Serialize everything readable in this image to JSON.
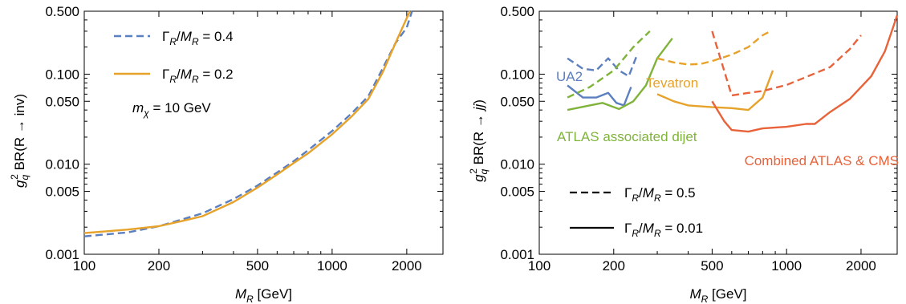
{
  "colors": {
    "blue": "#5b7fbf",
    "orange": "#e6a22a",
    "green": "#7fb33a",
    "red": "#e8623a",
    "black": "#000000"
  },
  "chart_data": [
    {
      "type": "line",
      "xscale": "log",
      "yscale": "log",
      "xlim": [
        100,
        2800
      ],
      "ylim": [
        0.001,
        0.5
      ],
      "xticks": [
        "100",
        "200",
        "500",
        "1000",
        "2000"
      ],
      "yticks": [
        "0.001",
        "0.005",
        "0.010",
        "0.050",
        "0.100",
        "0.500"
      ],
      "ylabel_parts": {
        "main": "g",
        "sub": "q",
        "sup": "2",
        "rest": " BR(R → inv)"
      },
      "xlabel_parts": {
        "main": "M",
        "sub": "R",
        "rest": " [GeV]"
      },
      "annotation": {
        "main": "m",
        "sub": "χ",
        "rest": " = 10 GeV"
      },
      "series": [
        {
          "name": "Γ_R/M_R = 0.4",
          "label_parts": {
            "a": "Γ",
            "asub": "R",
            "mid": "/M",
            "bsub": "R",
            "rest": " = 0.4"
          },
          "color": "blue",
          "dash": "dashed",
          "x": [
            100,
            150,
            200,
            250,
            300,
            400,
            500,
            600,
            700,
            800,
            1000,
            1200,
            1400,
            1600,
            1800,
            2000,
            2100
          ],
          "y": [
            0.00158,
            0.00175,
            0.00205,
            0.00245,
            0.00285,
            0.0041,
            0.0058,
            0.0081,
            0.0108,
            0.0143,
            0.0234,
            0.0368,
            0.057,
            0.116,
            0.22,
            0.33,
            0.5
          ]
        },
        {
          "name": "Γ_R/M_R = 0.2",
          "label_parts": {
            "a": "Γ",
            "asub": "R",
            "mid": "/M",
            "bsub": "R",
            "rest": " = 0.2"
          },
          "color": "orange",
          "dash": "solid",
          "x": [
            100,
            150,
            200,
            250,
            300,
            400,
            500,
            600,
            700,
            800,
            1000,
            1200,
            1400,
            1600,
            1800,
            1950,
            2060
          ],
          "y": [
            0.00172,
            0.00188,
            0.00205,
            0.00235,
            0.00265,
            0.0038,
            0.0055,
            0.0077,
            0.0103,
            0.0132,
            0.0215,
            0.034,
            0.053,
            0.105,
            0.22,
            0.36,
            0.5
          ]
        }
      ]
    },
    {
      "type": "line",
      "xscale": "log",
      "yscale": "log",
      "xlim": [
        100,
        2800
      ],
      "ylim": [
        0.001,
        0.5
      ],
      "xticks": [
        "100",
        "200",
        "500",
        "1000",
        "2000"
      ],
      "yticks": [
        "0.001",
        "0.005",
        "0.010",
        "0.050",
        "0.100",
        "0.500"
      ],
      "ylabel_parts": {
        "main": "g",
        "sub": "q",
        "sup": "2",
        "rest": " BR(R → jj)"
      },
      "xlabel_parts": {
        "main": "M",
        "sub": "R",
        "rest": " [GeV]"
      },
      "legend": [
        {
          "dash": "dashed",
          "label_parts": {
            "a": "Γ",
            "asub": "R",
            "mid": "/M",
            "bsub": "R",
            "rest": " = 0.5"
          }
        },
        {
          "dash": "solid",
          "label_parts": {
            "a": "Γ",
            "asub": "R",
            "mid": "/M",
            "bsub": "R",
            "rest": " = 0.01"
          }
        }
      ],
      "annotations": [
        {
          "text": "UA2",
          "color": "blue"
        },
        {
          "text": "Tevatron",
          "color": "orange"
        },
        {
          "text": "ATLAS associated dijet",
          "color": "green"
        },
        {
          "text": "Combined ATLAS & CMS",
          "color": "red"
        }
      ],
      "series": [
        {
          "group": "UA2",
          "color": "blue",
          "dash": "dashed",
          "x": [
            130,
            150,
            170,
            190,
            210,
            230,
            250
          ],
          "y": [
            0.15,
            0.115,
            0.11,
            0.15,
            0.11,
            0.095,
            0.17
          ]
        },
        {
          "group": "UA2",
          "color": "blue",
          "dash": "solid",
          "x": [
            130,
            150,
            170,
            190,
            205,
            220,
            235
          ],
          "y": [
            0.075,
            0.055,
            0.055,
            0.062,
            0.048,
            0.045,
            0.072
          ]
        },
        {
          "group": "ATLAS associated dijet",
          "color": "green",
          "dash": "dashed",
          "x": [
            130,
            160,
            200,
            240,
            280
          ],
          "y": [
            0.055,
            0.072,
            0.11,
            0.2,
            0.3
          ]
        },
        {
          "group": "ATLAS associated dijet",
          "color": "green",
          "dash": "solid",
          "x": [
            130,
            160,
            180,
            210,
            240,
            270,
            300,
            345
          ],
          "y": [
            0.04,
            0.045,
            0.048,
            0.041,
            0.05,
            0.075,
            0.15,
            0.25
          ]
        },
        {
          "group": "Tevatron",
          "color": "orange",
          "dash": "dashed",
          "x": [
            300,
            350,
            400,
            450,
            500,
            600,
            700,
            800,
            860
          ],
          "y": [
            0.15,
            0.135,
            0.128,
            0.13,
            0.14,
            0.165,
            0.2,
            0.27,
            0.3
          ]
        },
        {
          "group": "Tevatron",
          "color": "orange",
          "dash": "solid",
          "x": [
            300,
            350,
            400,
            500,
            600,
            700,
            800,
            880
          ],
          "y": [
            0.06,
            0.05,
            0.045,
            0.043,
            0.042,
            0.04,
            0.055,
            0.11
          ]
        },
        {
          "group": "Combined ATLAS & CMS",
          "color": "red",
          "dash": "dashed",
          "x": [
            500,
            600,
            700,
            800,
            1000,
            1200,
            1500,
            1800,
            2000
          ],
          "y": [
            0.3,
            0.058,
            0.062,
            0.065,
            0.076,
            0.093,
            0.12,
            0.19,
            0.27
          ]
        },
        {
          "group": "Combined ATLAS & CMS",
          "color": "red",
          "dash": "solid",
          "x": [
            500,
            560,
            600,
            700,
            800,
            1000,
            1200,
            1300,
            1500,
            1800,
            2200,
            2500,
            2800
          ],
          "y": [
            0.05,
            0.03,
            0.024,
            0.023,
            0.025,
            0.026,
            0.028,
            0.028,
            0.038,
            0.053,
            0.095,
            0.18,
            0.45
          ]
        }
      ]
    }
  ]
}
